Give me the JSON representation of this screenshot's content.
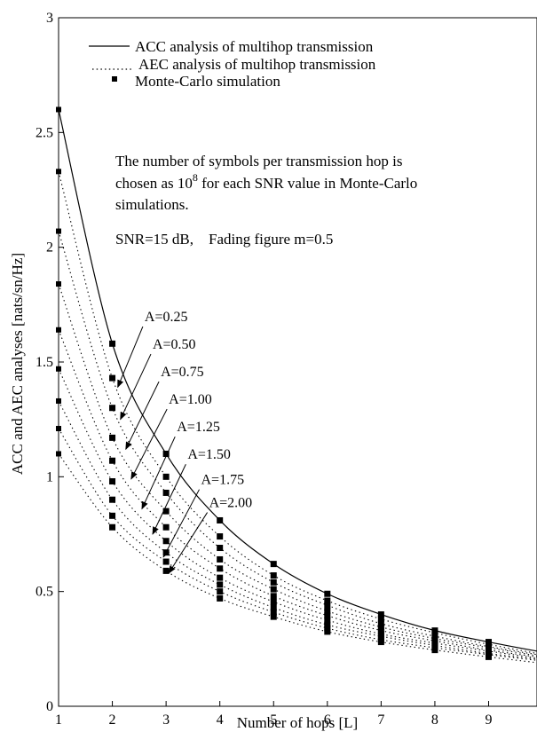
{
  "chart_data": {
    "type": "line",
    "title": "",
    "xlabel": "Number of hops [L]",
    "ylabel": "ACC and AEC analyses [nats/sn/Hz]",
    "xlim": [
      1,
      9.9
    ],
    "ylim": [
      0,
      3
    ],
    "xticks": [
      1,
      2,
      3,
      4,
      5,
      6,
      7,
      8,
      9
    ],
    "yticks": [
      0,
      0.5,
      1,
      1.5,
      2,
      2.5,
      3
    ],
    "grid": false,
    "legend_placement": "top-left",
    "legend": [
      {
        "label": "ACC analysis of multihop transmission",
        "style": "solid"
      },
      {
        "label": "AEC analysis of multihop transmission",
        "style": "dotted"
      },
      {
        "label": "Monte-Carlo simulation",
        "style": "square-marker"
      }
    ],
    "annotations": {
      "note_lines": [
        "The number of symbols per transmission hop is",
        "chosen as 10",
        "8",
        " for each SNR value in Monte-Carlo",
        "simulations."
      ],
      "snr_text": "SNR=15 dB,    Fading figure m=0.5"
    },
    "series": [
      {
        "name": "ACC analysis of multihop transmission",
        "style": "solid",
        "x": [
          1,
          2,
          3,
          4,
          5,
          6,
          7,
          8,
          9,
          9.9
        ],
        "y": [
          2.6,
          1.58,
          1.1,
          0.81,
          0.62,
          0.49,
          0.4,
          0.33,
          0.28,
          0.24
        ]
      },
      {
        "name": "A=0.25",
        "style": "dotted",
        "x": [
          1,
          2,
          3,
          4,
          5,
          6,
          7,
          8,
          9,
          9.9
        ],
        "y": [
          2.33,
          1.43,
          1.0,
          0.74,
          0.57,
          0.46,
          0.38,
          0.32,
          0.27,
          0.23
        ]
      },
      {
        "name": "A=0.50",
        "style": "dotted",
        "x": [
          1,
          2,
          3,
          4,
          5,
          6,
          7,
          8,
          9,
          9.9
        ],
        "y": [
          2.07,
          1.3,
          0.93,
          0.69,
          0.54,
          0.44,
          0.36,
          0.305,
          0.26,
          0.225
        ]
      },
      {
        "name": "A=0.75",
        "style": "dotted",
        "x": [
          1,
          2,
          3,
          4,
          5,
          6,
          7,
          8,
          9,
          9.9
        ],
        "y": [
          1.84,
          1.17,
          0.85,
          0.64,
          0.51,
          0.415,
          0.345,
          0.295,
          0.255,
          0.22
        ]
      },
      {
        "name": "A=1.00",
        "style": "dotted",
        "x": [
          1,
          2,
          3,
          4,
          5,
          6,
          7,
          8,
          9,
          9.9
        ],
        "y": [
          1.64,
          1.07,
          0.78,
          0.6,
          0.48,
          0.395,
          0.33,
          0.285,
          0.245,
          0.215
        ]
      },
      {
        "name": "A=1.25",
        "style": "dotted",
        "x": [
          1,
          2,
          3,
          4,
          5,
          6,
          7,
          8,
          9,
          9.9
        ],
        "y": [
          1.47,
          0.98,
          0.72,
          0.56,
          0.455,
          0.375,
          0.315,
          0.275,
          0.24,
          0.21
        ]
      },
      {
        "name": "A=1.50",
        "style": "dotted",
        "x": [
          1,
          2,
          3,
          4,
          5,
          6,
          7,
          8,
          9,
          9.9
        ],
        "y": [
          1.33,
          0.9,
          0.67,
          0.53,
          0.43,
          0.355,
          0.305,
          0.265,
          0.23,
          0.205
        ]
      },
      {
        "name": "A=1.75",
        "style": "dotted",
        "x": [
          1,
          2,
          3,
          4,
          5,
          6,
          7,
          8,
          9,
          9.9
        ],
        "y": [
          1.21,
          0.83,
          0.63,
          0.5,
          0.41,
          0.34,
          0.29,
          0.255,
          0.225,
          0.2
        ]
      },
      {
        "name": "A=2.00",
        "style": "dotted",
        "x": [
          1,
          2,
          3,
          4,
          5,
          6,
          7,
          8,
          9,
          9.9
        ],
        "y": [
          1.1,
          0.78,
          0.59,
          0.47,
          0.39,
          0.325,
          0.28,
          0.245,
          0.215,
          0.19
        ]
      }
    ],
    "simulation_x": [
      1,
      2,
      3,
      4,
      5,
      6,
      7,
      8,
      9
    ],
    "pointer_labels": [
      {
        "label": "A=0.25",
        "text_at": [
          2.6,
          1.67
        ],
        "arrow_to": [
          2.1,
          1.39
        ]
      },
      {
        "label": "A=0.50",
        "text_at": [
          2.75,
          1.55
        ],
        "arrow_to": [
          2.15,
          1.25
        ]
      },
      {
        "label": "A=0.75",
        "text_at": [
          2.9,
          1.43
        ],
        "arrow_to": [
          2.25,
          1.12
        ]
      },
      {
        "label": "A=1.00",
        "text_at": [
          3.05,
          1.31
        ],
        "arrow_to": [
          2.35,
          0.99
        ]
      },
      {
        "label": "A=1.25",
        "text_at": [
          3.2,
          1.19
        ],
        "arrow_to": [
          2.55,
          0.86
        ]
      },
      {
        "label": "A=1.50",
        "text_at": [
          3.4,
          1.07
        ],
        "arrow_to": [
          2.75,
          0.75
        ]
      },
      {
        "label": "A=1.75",
        "text_at": [
          3.65,
          0.96
        ],
        "arrow_to": [
          2.95,
          0.65
        ]
      },
      {
        "label": "A=2.00",
        "text_at": [
          3.8,
          0.86
        ],
        "arrow_to": [
          3.05,
          0.58
        ]
      }
    ]
  }
}
